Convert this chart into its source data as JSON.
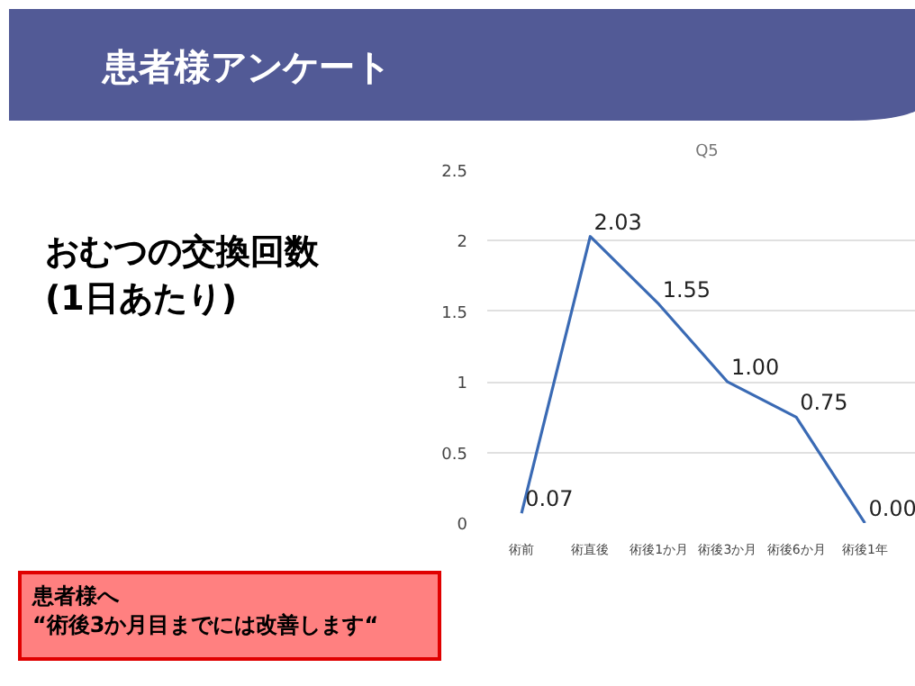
{
  "chart_data": {
    "type": "line",
    "title": "患者様アンケート",
    "subtitle": "おむつの交換回数\n(1日あたり)",
    "annotations": [
      "Q5",
      "患者様へ\n“術後3か月目までには改善します“"
    ],
    "categories": [
      "術前",
      "術直後",
      "術後1か月",
      "術後3か月",
      "術後6か月",
      "術後1年"
    ],
    "series": [
      {
        "color": "#3a6ab4",
        "values": [
          0.07,
          2.03,
          1.55,
          1.0,
          0.75,
          0.0
        ],
        "value_labels": [
          "0.07",
          "2.03",
          "1.55",
          "1.00",
          "0.75",
          "0.00"
        ]
      }
    ],
    "ylim": [
      0,
      2.5
    ],
    "yticks": [
      0,
      0.5,
      1,
      1.5,
      2,
      2.5
    ],
    "grid": "y",
    "marker": "none"
  }
}
